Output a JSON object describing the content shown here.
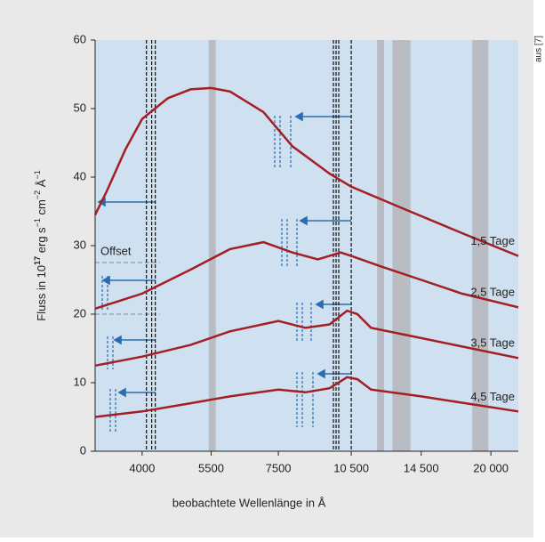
{
  "chart_data": {
    "type": "line",
    "xlabel": "beobachtete Wellenlänge in Å",
    "ylabel_parts": [
      "Fluss in 10",
      "17",
      " erg s",
      "−1",
      " cm",
      "−2",
      " Å",
      "−1"
    ],
    "source": "aus [7]",
    "offset_label": "Offset",
    "xscale": "log",
    "xlim": [
      3220,
      22700
    ],
    "ylim": [
      0,
      60
    ],
    "xticks": [
      4000,
      5500,
      7500,
      {
        "value": 10500,
        "label": "10 500"
      },
      {
        "value": 14500,
        "label": "14 500"
      },
      {
        "value": 20000,
        "label": "20 000"
      }
    ],
    "yticks": [
      0,
      10,
      20,
      30,
      40,
      50,
      60
    ],
    "shaded_regions": [
      [
        5440,
        5620
      ],
      [
        11830,
        12220
      ],
      [
        12700,
        13800
      ],
      [
        18350,
        19760
      ]
    ],
    "vlines": [
      4080,
      4180,
      4250,
      9670,
      9790,
      9910,
      10500
    ],
    "series": [
      {
        "name": "1,5 Tage",
        "color": "#a31f24",
        "x": [
          3220,
          3400,
          3700,
          4000,
          4500,
          5000,
          5500,
          6000,
          7000,
          8000,
          9500,
          10500,
          13150,
          17540,
          22700
        ],
        "values": [
          34.5,
          38,
          44,
          48.5,
          51.5,
          52.8,
          53,
          52.5,
          49.5,
          44.5,
          40.5,
          38.6,
          35.6,
          31.8,
          28.5
        ]
      },
      {
        "name": "2,5 Tage",
        "color": "#a31f24",
        "x": [
          3220,
          4000,
          5000,
          6000,
          7000,
          8000,
          9000,
          10000,
          10500,
          12000,
          14500,
          17500,
          22700
        ],
        "values": [
          20.8,
          23,
          26.5,
          29.5,
          30.5,
          29,
          28,
          29,
          28.5,
          27,
          25,
          23,
          21
        ]
      },
      {
        "name": "3,5 Tage",
        "color": "#a31f24",
        "x": [
          3220,
          4000,
          5000,
          6000,
          7500,
          8500,
          9500,
          10300,
          10800,
          11500,
          14500,
          22700
        ],
        "values": [
          12.5,
          13.8,
          15.5,
          17.5,
          19,
          18,
          18.5,
          20.5,
          20,
          18,
          16.5,
          13.6
        ]
      },
      {
        "name": "4,5 Tage",
        "color": "#a31f24",
        "x": [
          3220,
          4000,
          5000,
          6000,
          7500,
          8500,
          9500,
          10300,
          10800,
          11500,
          14500,
          22700
        ],
        "values": [
          5,
          5.8,
          7,
          8,
          9,
          8.6,
          9.2,
          10.8,
          10.5,
          9,
          8,
          5.8
        ]
      }
    ]
  }
}
